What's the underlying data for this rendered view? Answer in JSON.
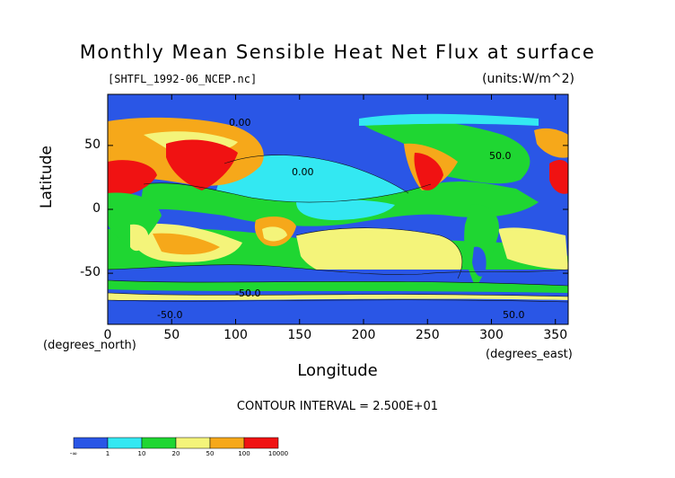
{
  "chart_data": {
    "type": "heatmap",
    "title": "Monthly Mean Sensible Heat Net Flux at surface",
    "subtitle_left": "[SHTFL_1992-06_NCEP.nc]",
    "subtitle_right": "(units:W/m^2)",
    "xlabel": "Longitude",
    "ylabel": "Latitude",
    "x_unit_note": "(degrees_east)",
    "y_unit_note": "(degrees_north)",
    "xlim": [
      0,
      360
    ],
    "ylim": [
      -90,
      90
    ],
    "x_ticks": [
      "0",
      "50",
      "100",
      "150",
      "200",
      "250",
      "300",
      "350"
    ],
    "y_ticks": [
      "50",
      "0",
      "-50"
    ],
    "contour_interval": "CONTOUR INTERVAL = 2.500E+01",
    "contour_labels": [
      "-50.0",
      "-50.0",
      "50.0",
      "0.00",
      "0.00",
      "50.0"
    ],
    "colorbar": {
      "colors": [
        "#2a56e6",
        "#33e8f2",
        "#1fd632",
        "#f4f47a",
        "#f6a81a",
        "#f01212"
      ],
      "tick_labels": [
        "-∞",
        "1",
        "10",
        "20",
        "50",
        "100",
        "10000"
      ]
    }
  }
}
